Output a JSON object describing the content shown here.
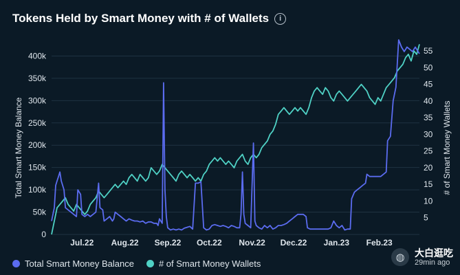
{
  "title": "Tokens Held by Smart Money with # of Wallets",
  "watermark": {
    "name": "大白逛吃",
    "time": "29min ago"
  },
  "colors": {
    "balance": "#5b6cf0",
    "wallets": "#4fd1c5",
    "grid": "#1f3342",
    "axis_text": "#dfe6ec"
  },
  "chart_data": {
    "type": "line",
    "title": "Tokens Held by Smart Money with # of Wallets",
    "x_ticks": [
      "Jul.22",
      "Aug.22",
      "Sep.22",
      "Oct.22",
      "Nov.22",
      "Dec.22",
      "Jan.23",
      "Feb.23"
    ],
    "x_tick_days": [
      22,
      53,
      84,
      114,
      145,
      175,
      206,
      237
    ],
    "x_range_days": [
      0,
      250
    ],
    "left_axis": {
      "label": "Total Smart Money Balance",
      "range": [
        0,
        430000
      ],
      "ticks": [
        0,
        50000,
        100000,
        150000,
        200000,
        250000,
        300000,
        350000,
        400000
      ],
      "tick_labels": [
        "0",
        "50k",
        "100k",
        "150k",
        "200k",
        "250k",
        "300k",
        "350k",
        "400k"
      ]
    },
    "right_axis": {
      "label": "# of Smart Money Wallets",
      "range": [
        0,
        57.5
      ],
      "ticks": [
        5,
        10,
        15,
        20,
        25,
        30,
        35,
        40,
        45,
        50,
        55
      ],
      "tick_labels": [
        "5",
        "10",
        "15",
        "20",
        "25",
        "30",
        "35",
        "40",
        "45",
        "50",
        "55"
      ]
    },
    "series": [
      {
        "name": "Total Smart Money Balance",
        "axis": "left",
        "points": [
          [
            0,
            30000
          ],
          [
            2,
            60000
          ],
          [
            3,
            110000
          ],
          [
            4,
            120000
          ],
          [
            5,
            130000
          ],
          [
            6,
            140000
          ],
          [
            7,
            120000
          ],
          [
            9,
            100000
          ],
          [
            10,
            60000
          ],
          [
            12,
            55000
          ],
          [
            14,
            50000
          ],
          [
            16,
            45000
          ],
          [
            18,
            40000
          ],
          [
            19,
            100000
          ],
          [
            20,
            95000
          ],
          [
            21,
            90000
          ],
          [
            22,
            45000
          ],
          [
            24,
            40000
          ],
          [
            26,
            45000
          ],
          [
            28,
            40000
          ],
          [
            30,
            45000
          ],
          [
            32,
            50000
          ],
          [
            34,
            115000
          ],
          [
            35,
            60000
          ],
          [
            37,
            55000
          ],
          [
            38,
            30000
          ],
          [
            40,
            35000
          ],
          [
            42,
            40000
          ],
          [
            44,
            30000
          ],
          [
            45,
            35000
          ],
          [
            46,
            50000
          ],
          [
            48,
            45000
          ],
          [
            50,
            40000
          ],
          [
            52,
            35000
          ],
          [
            54,
            30000
          ],
          [
            56,
            35000
          ],
          [
            58,
            32000
          ],
          [
            60,
            30000
          ],
          [
            62,
            30000
          ],
          [
            64,
            28000
          ],
          [
            66,
            30000
          ],
          [
            68,
            25000
          ],
          [
            70,
            28000
          ],
          [
            72,
            28000
          ],
          [
            74,
            25000
          ],
          [
            76,
            25000
          ],
          [
            77,
            20000
          ],
          [
            78,
            35000
          ],
          [
            79,
            30000
          ],
          [
            80,
            25000
          ],
          [
            81,
            340000
          ],
          [
            82,
            100000
          ],
          [
            83,
            40000
          ],
          [
            84,
            15000
          ],
          [
            86,
            10000
          ],
          [
            88,
            12000
          ],
          [
            90,
            10000
          ],
          [
            92,
            12000
          ],
          [
            94,
            10000
          ],
          [
            96,
            14000
          ],
          [
            98,
            16000
          ],
          [
            100,
            18000
          ],
          [
            102,
            12000
          ],
          [
            104,
            115000
          ],
          [
            106,
            115000
          ],
          [
            108,
            118000
          ],
          [
            110,
            15000
          ],
          [
            112,
            10000
          ],
          [
            114,
            12000
          ],
          [
            116,
            20000
          ],
          [
            118,
            22000
          ],
          [
            120,
            20000
          ],
          [
            122,
            18000
          ],
          [
            124,
            20000
          ],
          [
            126,
            18000
          ],
          [
            128,
            15000
          ],
          [
            130,
            20000
          ],
          [
            132,
            18000
          ],
          [
            134,
            15000
          ],
          [
            136,
            15000
          ],
          [
            137,
            45000
          ],
          [
            138,
            140000
          ],
          [
            139,
            45000
          ],
          [
            140,
            25000
          ],
          [
            142,
            20000
          ],
          [
            144,
            15000
          ],
          [
            146,
            205000
          ],
          [
            147,
            30000
          ],
          [
            148,
            20000
          ],
          [
            150,
            15000
          ],
          [
            152,
            12000
          ],
          [
            154,
            20000
          ],
          [
            156,
            15000
          ],
          [
            158,
            20000
          ],
          [
            160,
            12000
          ],
          [
            162,
            15000
          ],
          [
            164,
            20000
          ],
          [
            166,
            20000
          ],
          [
            168,
            22000
          ],
          [
            170,
            25000
          ],
          [
            172,
            30000
          ],
          [
            174,
            35000
          ],
          [
            176,
            40000
          ],
          [
            178,
            45000
          ],
          [
            180,
            45000
          ],
          [
            182,
            45000
          ],
          [
            184,
            40000
          ],
          [
            185,
            15000
          ],
          [
            187,
            12000
          ],
          [
            190,
            12000
          ],
          [
            193,
            12000
          ],
          [
            196,
            12000
          ],
          [
            198,
            12000
          ],
          [
            200,
            12000
          ],
          [
            202,
            15000
          ],
          [
            204,
            30000
          ],
          [
            206,
            20000
          ],
          [
            208,
            15000
          ],
          [
            210,
            20000
          ],
          [
            212,
            10000
          ],
          [
            214,
            12000
          ],
          [
            216,
            12000
          ],
          [
            217,
            80000
          ],
          [
            219,
            95000
          ],
          [
            221,
            100000
          ],
          [
            223,
            105000
          ],
          [
            225,
            110000
          ],
          [
            227,
            115000
          ],
          [
            228,
            135000
          ],
          [
            230,
            130000
          ],
          [
            233,
            130000
          ],
          [
            236,
            130000
          ],
          [
            238,
            130000
          ],
          [
            240,
            135000
          ],
          [
            242,
            140000
          ],
          [
            243,
            210000
          ],
          [
            245,
            220000
          ],
          [
            247,
            300000
          ],
          [
            249,
            330000
          ],
          [
            251,
            440000
          ],
          [
            253,
            420000
          ],
          [
            255,
            410000
          ],
          [
            257,
            420000
          ],
          [
            259,
            415000
          ],
          [
            261,
            410000
          ],
          [
            263,
            420000
          ],
          [
            265,
            410000
          ],
          [
            266,
            405000
          ]
        ]
      },
      {
        "name": "# of Smart Money Wallets",
        "axis": "right",
        "points": [
          [
            0,
            0
          ],
          [
            2,
            4
          ],
          [
            4,
            8
          ],
          [
            6,
            9
          ],
          [
            8,
            10
          ],
          [
            10,
            11
          ],
          [
            12,
            9
          ],
          [
            14,
            8
          ],
          [
            16,
            7
          ],
          [
            18,
            9
          ],
          [
            20,
            8
          ],
          [
            22,
            7
          ],
          [
            24,
            6
          ],
          [
            26,
            7
          ],
          [
            28,
            9
          ],
          [
            30,
            10
          ],
          [
            32,
            11
          ],
          [
            34,
            13
          ],
          [
            36,
            12
          ],
          [
            38,
            11
          ],
          [
            40,
            12
          ],
          [
            42,
            13
          ],
          [
            44,
            14
          ],
          [
            46,
            15
          ],
          [
            48,
            14
          ],
          [
            50,
            15
          ],
          [
            52,
            16
          ],
          [
            54,
            15
          ],
          [
            56,
            17
          ],
          [
            58,
            18
          ],
          [
            60,
            17
          ],
          [
            62,
            16
          ],
          [
            64,
            18
          ],
          [
            66,
            17
          ],
          [
            68,
            16
          ],
          [
            70,
            17
          ],
          [
            72,
            20
          ],
          [
            74,
            19
          ],
          [
            76,
            18
          ],
          [
            78,
            19
          ],
          [
            80,
            21
          ],
          [
            82,
            20
          ],
          [
            84,
            19
          ],
          [
            86,
            18
          ],
          [
            88,
            17
          ],
          [
            90,
            16
          ],
          [
            92,
            18
          ],
          [
            94,
            19
          ],
          [
            96,
            18
          ],
          [
            98,
            17
          ],
          [
            100,
            18
          ],
          [
            102,
            17
          ],
          [
            104,
            16
          ],
          [
            106,
            17
          ],
          [
            108,
            16
          ],
          [
            110,
            18
          ],
          [
            112,
            19
          ],
          [
            114,
            21
          ],
          [
            116,
            22
          ],
          [
            118,
            23
          ],
          [
            120,
            22
          ],
          [
            122,
            23
          ],
          [
            124,
            22
          ],
          [
            126,
            21
          ],
          [
            128,
            22
          ],
          [
            130,
            21
          ],
          [
            132,
            20
          ],
          [
            134,
            22
          ],
          [
            136,
            23
          ],
          [
            138,
            24
          ],
          [
            140,
            22
          ],
          [
            142,
            21
          ],
          [
            144,
            23
          ],
          [
            146,
            24
          ],
          [
            148,
            23
          ],
          [
            150,
            24
          ],
          [
            152,
            26
          ],
          [
            154,
            27
          ],
          [
            156,
            28
          ],
          [
            158,
            30
          ],
          [
            160,
            31
          ],
          [
            162,
            33
          ],
          [
            164,
            36
          ],
          [
            166,
            37
          ],
          [
            168,
            38
          ],
          [
            170,
            37
          ],
          [
            172,
            36
          ],
          [
            174,
            37
          ],
          [
            176,
            38
          ],
          [
            178,
            37
          ],
          [
            180,
            38
          ],
          [
            182,
            37
          ],
          [
            184,
            36
          ],
          [
            186,
            38
          ],
          [
            188,
            41
          ],
          [
            190,
            43
          ],
          [
            192,
            44
          ],
          [
            194,
            43
          ],
          [
            196,
            42
          ],
          [
            198,
            44
          ],
          [
            200,
            43
          ],
          [
            202,
            41
          ],
          [
            204,
            40
          ],
          [
            206,
            42
          ],
          [
            208,
            43
          ],
          [
            210,
            42
          ],
          [
            212,
            41
          ],
          [
            214,
            40
          ],
          [
            216,
            41
          ],
          [
            218,
            42
          ],
          [
            220,
            43
          ],
          [
            222,
            44
          ],
          [
            224,
            45
          ],
          [
            226,
            44
          ],
          [
            228,
            43
          ],
          [
            230,
            41
          ],
          [
            232,
            40
          ],
          [
            234,
            39
          ],
          [
            236,
            41
          ],
          [
            238,
            40
          ],
          [
            240,
            42
          ],
          [
            242,
            44
          ],
          [
            244,
            45
          ],
          [
            246,
            46
          ],
          [
            248,
            47
          ],
          [
            250,
            49
          ],
          [
            252,
            50
          ],
          [
            254,
            51
          ],
          [
            256,
            53
          ],
          [
            258,
            54
          ],
          [
            260,
            52
          ],
          [
            262,
            55
          ],
          [
            264,
            54
          ],
          [
            266,
            57
          ]
        ]
      }
    ]
  }
}
